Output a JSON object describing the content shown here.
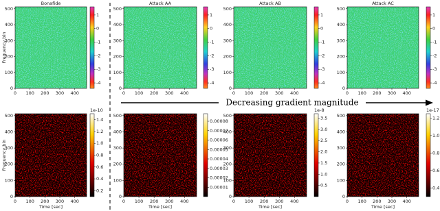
{
  "annotation": "Decreasing gradient magnitude",
  "chart_data": [
    {
      "type": "heatmap",
      "title": "Bonafide",
      "ylabel": "Frequency bin",
      "colormap": "jet",
      "xlim": [
        0,
        480
      ],
      "xticks": [
        0,
        100,
        200,
        300,
        400
      ],
      "ylim": [
        0,
        512
      ],
      "yticks": [
        0,
        100,
        200,
        300,
        400,
        500
      ],
      "clim": [
        -4.4,
        1.6
      ],
      "cticks": [
        1,
        0,
        -1,
        -2,
        -3,
        -4
      ]
    },
    {
      "type": "heatmap",
      "title": "Attack AA",
      "colormap": "jet",
      "xlim": [
        0,
        480
      ],
      "xticks": [
        0,
        100,
        200,
        300,
        400
      ],
      "ylim": [
        0,
        512
      ],
      "yticks": [
        0,
        100,
        200,
        300,
        400,
        500
      ],
      "clim": [
        -4.4,
        1.6
      ],
      "cticks": [
        1,
        0,
        -1,
        -2,
        -3,
        -4
      ]
    },
    {
      "type": "heatmap",
      "title": "Attack AB",
      "colormap": "jet",
      "xlim": [
        0,
        480
      ],
      "xticks": [
        0,
        100,
        200,
        300,
        400
      ],
      "ylim": [
        0,
        512
      ],
      "yticks": [
        0,
        100,
        200,
        300,
        400,
        500
      ],
      "clim": [
        -4.4,
        1.6
      ],
      "cticks": [
        1,
        0,
        -1,
        -2,
        -3,
        -4
      ]
    },
    {
      "type": "heatmap",
      "title": "Attack AC",
      "colormap": "jet",
      "xlim": [
        0,
        480
      ],
      "xticks": [
        0,
        100,
        200,
        300,
        400
      ],
      "ylim": [
        0,
        512
      ],
      "yticks": [
        0,
        100,
        200,
        300,
        400,
        500
      ],
      "clim": [
        -4.4,
        1.6
      ],
      "cticks": [
        1,
        0,
        -1,
        -2,
        -3,
        -4
      ]
    },
    {
      "type": "heatmap",
      "ylabel": "Frequency bin",
      "xlabel": "Time [sec]",
      "colormap": "hot",
      "offset": "1e-10",
      "xlim": [
        0,
        480
      ],
      "xticks": [
        0,
        100,
        200,
        300,
        400
      ],
      "ylim": [
        0,
        512
      ],
      "yticks": [
        0,
        100,
        200,
        300,
        400,
        500
      ],
      "clim": [
        0.1,
        1.5
      ],
      "cticks": [
        0.2,
        0.4,
        0.6,
        0.8,
        {
          "value": 1,
          "label": "1.0"
        },
        1.2,
        1.4
      ]
    },
    {
      "type": "heatmap",
      "xlabel": "Time [sec]",
      "colormap": "hot",
      "xlim": [
        0,
        480
      ],
      "xticks": [
        0,
        100,
        200,
        300,
        400
      ],
      "ylim": [
        0,
        512
      ],
      "yticks": [
        0,
        100,
        200,
        300,
        400,
        500
      ],
      "clim": [
        0,
        8.8e-05
      ],
      "cticks": [
        {
          "value": 1e-05,
          "label": "0.00001"
        },
        {
          "value": 2e-05,
          "label": "0.00002"
        },
        {
          "value": 3e-05,
          "label": "0.00003"
        },
        {
          "value": 4e-05,
          "label": "0.00004"
        },
        {
          "value": 5e-05,
          "label": "0.00005"
        },
        {
          "value": 6e-05,
          "label": "0.00006"
        },
        {
          "value": 7e-05,
          "label": "0.00007"
        },
        {
          "value": 8e-05,
          "label": "0.00008"
        }
      ]
    },
    {
      "type": "heatmap",
      "xlabel": "Time [sec]",
      "colormap": "hot",
      "offset": "1e-8",
      "xlim": [
        0,
        480
      ],
      "xticks": [
        0,
        100,
        200,
        300,
        400
      ],
      "ylim": [
        0,
        512
      ],
      "yticks": [
        0,
        100,
        200,
        300,
        400,
        500
      ],
      "clim": [
        0,
        3.7
      ],
      "cticks": [
        0.5,
        {
          "value": 1,
          "label": "1.0"
        },
        1.5,
        {
          "value": 2,
          "label": "2.0"
        },
        2.5,
        {
          "value": 3,
          "label": "3.0"
        },
        3.5
      ]
    },
    {
      "type": "heatmap",
      "xlabel": "Time [sec]",
      "colormap": "hot",
      "offset": "1e-17",
      "xlim": [
        0,
        480
      ],
      "xticks": [
        0,
        100,
        200,
        300,
        400
      ],
      "ylim": [
        0,
        512
      ],
      "yticks": [
        0,
        100,
        200,
        300,
        400,
        500
      ],
      "clim": [
        0.3,
        1.25
      ],
      "cticks": [
        0.4,
        0.6,
        0.8,
        {
          "value": 1,
          "label": "1.0"
        },
        1.2
      ]
    }
  ]
}
